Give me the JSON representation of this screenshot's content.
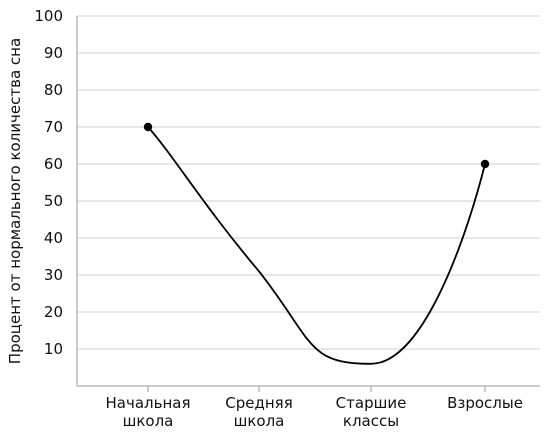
{
  "chart_data": {
    "type": "line",
    "title": "",
    "xlabel": "",
    "ylabel": "Процент от нормального количества сна",
    "ylim": [
      0,
      100
    ],
    "yticks": [
      10,
      20,
      30,
      40,
      50,
      60,
      70,
      80,
      90,
      100
    ],
    "grid": true,
    "categories": [
      [
        "Начальная",
        "школа"
      ],
      [
        "Средняя",
        "школа"
      ],
      [
        "Старшие",
        "классы"
      ],
      [
        "Взрослые"
      ]
    ],
    "series": [
      {
        "values": [
          70,
          31,
          6,
          60
        ],
        "color": "#000000",
        "markers_at": [
          0,
          3
        ]
      }
    ]
  }
}
